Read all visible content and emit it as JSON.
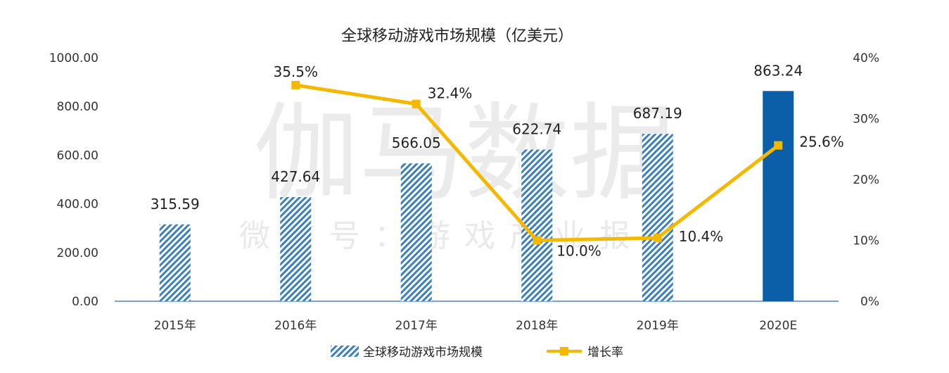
{
  "watermark": {
    "main": "伽马数据",
    "sub": "微信号：游戏产业报告"
  },
  "chart_data": {
    "type": "bar",
    "title": "全球移动游戏市场规模（亿美元）",
    "categories": [
      "2015年",
      "2016年",
      "2017年",
      "2018年",
      "2019年",
      "2020E"
    ],
    "series": [
      {
        "name": "全球移动游戏市场规模",
        "kind": "bar",
        "axis": "left",
        "values": [
          315.59,
          427.64,
          566.05,
          622.74,
          687.19,
          863.24
        ],
        "labels": [
          "315.59",
          "427.64",
          "566.05",
          "622.74",
          "687.19",
          "863.24"
        ],
        "color": "#3a7fc1",
        "highlight_color": "#0b5ea8",
        "pattern": "diagonal-hatch"
      },
      {
        "name": "增长率",
        "kind": "line",
        "axis": "right",
        "values": [
          null,
          35.5,
          32.4,
          10.0,
          10.4,
          25.6
        ],
        "labels": [
          "",
          "35.5%",
          "32.4%",
          "10.0%",
          "10.4%",
          "25.6%"
        ],
        "color": "#f5b800"
      }
    ],
    "y_left": {
      "min": 0,
      "max": 1000,
      "ticks": [
        "0.00",
        "200.00",
        "400.00",
        "600.00",
        "800.00",
        "1000.00"
      ]
    },
    "y_right": {
      "min": 0,
      "max": 40,
      "ticks": [
        "0%",
        "10%",
        "20%",
        "30%",
        "40%"
      ]
    },
    "grid": false,
    "legend_position": "bottom"
  }
}
